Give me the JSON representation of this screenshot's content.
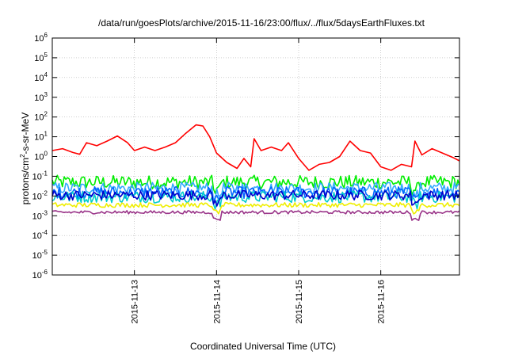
{
  "chart_data": {
    "type": "line",
    "title": "/data/run/goesPlots/archive/2015-11-16/23:00/flux/../flux/5daysEarthFluxes.txt",
    "xlabel": "Coordinated Universal Time (UTC)",
    "ylabel": {
      "prefix": "protons/cm",
      "sup": "2",
      "suffix": "-s-sr-MeV"
    },
    "y_scale": "log",
    "ylim": [
      1e-06,
      1000000.0
    ],
    "xlim": [
      "2015-11-12T00:00",
      "2015-11-16T23:00"
    ],
    "grid": true,
    "y_ticks": [
      {
        "base": "10",
        "exp": "-6",
        "value": 1e-06
      },
      {
        "base": "10",
        "exp": "-5",
        "value": 1e-05
      },
      {
        "base": "10",
        "exp": "-4",
        "value": 0.0001
      },
      {
        "base": "10",
        "exp": "-3",
        "value": 0.001
      },
      {
        "base": "10",
        "exp": "-2",
        "value": 0.01
      },
      {
        "base": "10",
        "exp": "-1",
        "value": 0.1
      },
      {
        "base": "10",
        "exp": "0",
        "value": 1
      },
      {
        "base": "10",
        "exp": "1",
        "value": 10
      },
      {
        "base": "10",
        "exp": "2",
        "value": 100
      },
      {
        "base": "10",
        "exp": "3",
        "value": 1000
      },
      {
        "base": "10",
        "exp": "4",
        "value": 10000
      },
      {
        "base": "10",
        "exp": "5",
        "value": 100000
      },
      {
        "base": "10",
        "exp": "6",
        "value": 1000000
      }
    ],
    "x_ticks": [
      "2015-11-13",
      "2015-11-14",
      "2015-11-15",
      "2015-11-16"
    ],
    "series": [
      {
        "color": "#ff0000",
        "points": [
          [
            "2015-11-12T00:00",
            2
          ],
          [
            "2015-11-12T03:00",
            2.5
          ],
          [
            "2015-11-12T06:00",
            1.6
          ],
          [
            "2015-11-12T08:00",
            1.3
          ],
          [
            "2015-11-12T10:00",
            5
          ],
          [
            "2015-11-12T13:00",
            3.5
          ],
          [
            "2015-11-12T16:00",
            6
          ],
          [
            "2015-11-12T19:00",
            11
          ],
          [
            "2015-11-12T22:00",
            5
          ],
          [
            "2015-11-13T00:00",
            2
          ],
          [
            "2015-11-13T03:00",
            3
          ],
          [
            "2015-11-13T06:00",
            2
          ],
          [
            "2015-11-13T09:00",
            3
          ],
          [
            "2015-11-13T12:00",
            5
          ],
          [
            "2015-11-13T15:00",
            15
          ],
          [
            "2015-11-13T18:00",
            40
          ],
          [
            "2015-11-13T20:00",
            35
          ],
          [
            "2015-11-13T22:00",
            10
          ],
          [
            "2015-11-14T00:00",
            1.5
          ],
          [
            "2015-11-14T03:00",
            0.5
          ],
          [
            "2015-11-14T06:00",
            0.25
          ],
          [
            "2015-11-14T08:00",
            0.8
          ],
          [
            "2015-11-14T10:00",
            0.3
          ],
          [
            "2015-11-14T11:00",
            8
          ],
          [
            "2015-11-14T13:00",
            2
          ],
          [
            "2015-11-14T16:00",
            3
          ],
          [
            "2015-11-14T19:00",
            2
          ],
          [
            "2015-11-14T21:00",
            5
          ],
          [
            "2015-11-15T00:00",
            0.8
          ],
          [
            "2015-11-15T03:00",
            0.2
          ],
          [
            "2015-11-15T06:00",
            0.4
          ],
          [
            "2015-11-15T09:00",
            0.5
          ],
          [
            "2015-11-15T12:00",
            1
          ],
          [
            "2015-11-15T15:00",
            6
          ],
          [
            "2015-11-15T18:00",
            2
          ],
          [
            "2015-11-15T21:00",
            1.5
          ],
          [
            "2015-11-16T00:00",
            0.3
          ],
          [
            "2015-11-16T03:00",
            0.2
          ],
          [
            "2015-11-16T06:00",
            0.4
          ],
          [
            "2015-11-16T09:00",
            0.3
          ],
          [
            "2015-11-16T10:00",
            6
          ],
          [
            "2015-11-16T12:00",
            1.2
          ],
          [
            "2015-11-16T15:00",
            2.5
          ],
          [
            "2015-11-16T18:00",
            1.5
          ],
          [
            "2015-11-16T21:00",
            0.9
          ],
          [
            "2015-11-16T23:00",
            0.6
          ]
        ]
      },
      {
        "color": "#00ee00",
        "level": 0.05,
        "jitter": 0.35
      },
      {
        "color": "#33aaff",
        "level": 0.025,
        "jitter": 0.3
      },
      {
        "color": "#0066ff",
        "level": 0.015,
        "jitter": 0.3
      },
      {
        "color": "#00cccc",
        "level": 0.009,
        "jitter": 0.3
      },
      {
        "color": "#0000cc",
        "level": 0.011,
        "jitter": 0.25
      },
      {
        "color": "#eeee00",
        "level": 0.0035,
        "jitter": 0.12
      },
      {
        "color": "#993388",
        "level": 0.0015,
        "jitter": 0.08
      }
    ]
  }
}
